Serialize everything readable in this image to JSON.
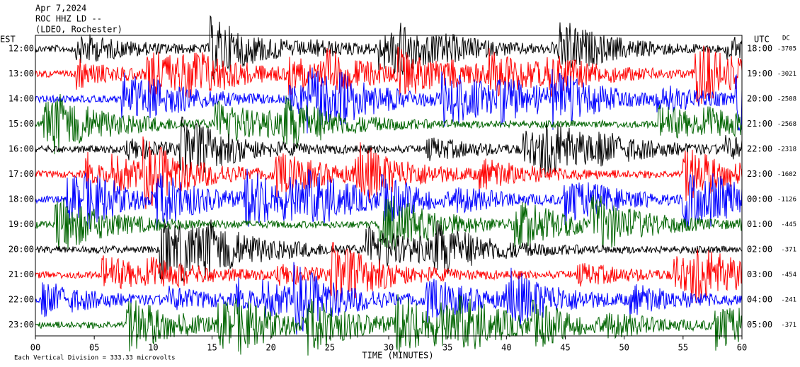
{
  "header": {
    "lines": [
      "Apr 7,2024",
      "ROC HHZ LD --",
      "(LDEO, Rochester)"
    ]
  },
  "left_label": "EST",
  "right_label": "UTC",
  "dc_label": "DC",
  "rows": [
    {
      "est": "12:00",
      "utc": "18:00",
      "dc": "-3705"
    },
    {
      "est": "13:00",
      "utc": "19:00",
      "dc": "-3021"
    },
    {
      "est": "14:00",
      "utc": "20:00",
      "dc": "-2508"
    },
    {
      "est": "15:00",
      "utc": "21:00",
      "dc": "-2568"
    },
    {
      "est": "16:00",
      "utc": "22:00",
      "dc": "-2318"
    },
    {
      "est": "17:00",
      "utc": "23:00",
      "dc": "-1602"
    },
    {
      "est": "18:00",
      "utc": "00:00",
      "dc": "-1126"
    },
    {
      "est": "19:00",
      "utc": "01:00",
      "dc": "-445"
    },
    {
      "est": "20:00",
      "utc": "02:00",
      "dc": "-371"
    },
    {
      "est": "21:00",
      "utc": "03:00",
      "dc": "-454"
    },
    {
      "est": "22:00",
      "utc": "04:00",
      "dc": "-241"
    },
    {
      "est": "23:00",
      "utc": "05:00",
      "dc": "-371"
    }
  ],
  "x_axis": {
    "ticks": [
      "00",
      "05",
      "10",
      "15",
      "20",
      "25",
      "30",
      "35",
      "40",
      "45",
      "50",
      "55",
      "60"
    ],
    "label": "TIME (MINUTES)"
  },
  "footer": "Each Vertical Division =  333.33 microvolts"
}
